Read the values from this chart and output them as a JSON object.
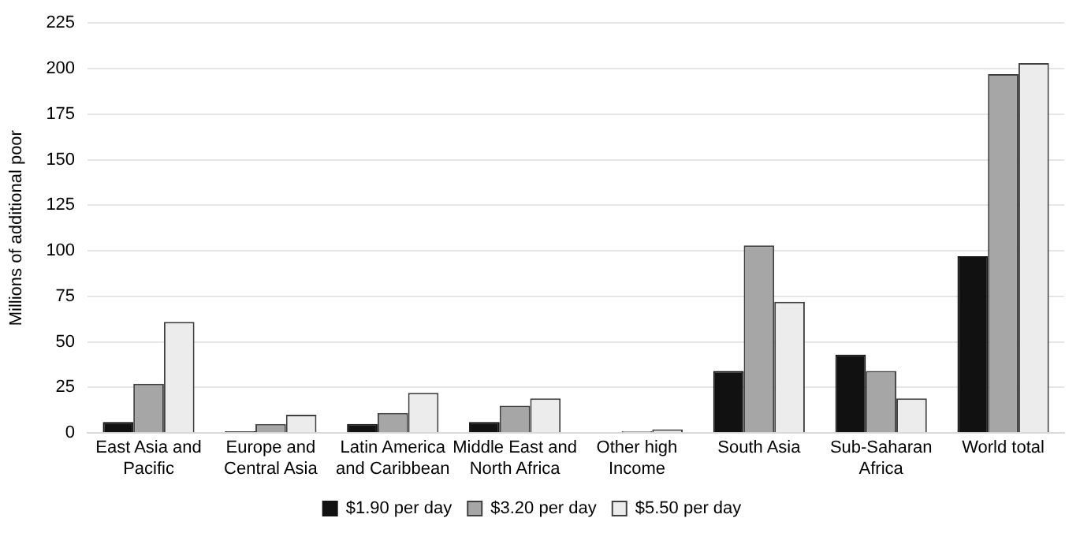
{
  "chart_data": {
    "type": "bar",
    "ylabel": "Millions of additional poor",
    "categories": [
      "East Asia and Pacific",
      "Europe and Central Asia",
      "Latin America and Caribbean",
      "Middle East and North Africa",
      "Other high Income",
      "South Asia",
      "Sub-Saharan Africa",
      "World total"
    ],
    "series": [
      {
        "name": "$1.90 per day",
        "color": "#111111",
        "values": [
          6,
          1,
          5,
          6,
          0,
          34,
          43,
          97
        ]
      },
      {
        "name": "$3.20 per day",
        "color": "#a6a6a6",
        "values": [
          27,
          5,
          11,
          15,
          1,
          103,
          34,
          197
        ]
      },
      {
        "name": "$5.50 per day",
        "color": "#ececec",
        "values": [
          61,
          10,
          22,
          19,
          2,
          72,
          19,
          203
        ]
      }
    ],
    "ylim": [
      0,
      225
    ],
    "yticks": [
      0,
      25,
      50,
      75,
      100,
      125,
      150,
      175,
      200,
      225
    ],
    "grid": "y",
    "legend": "bottom"
  }
}
